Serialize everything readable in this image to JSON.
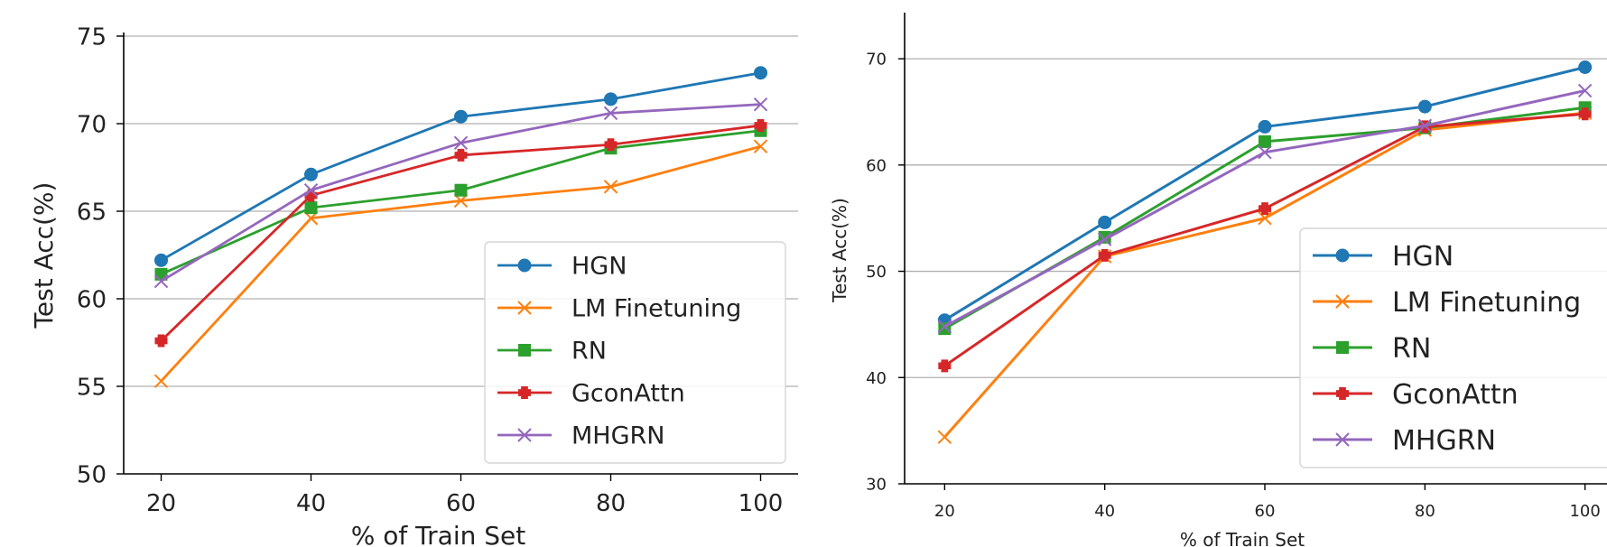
{
  "colors": {
    "HGN": "#1f77b4",
    "LM Finetuning": "#ff7f0e",
    "RN": "#2ca02c",
    "GconAttn": "#d62728",
    "MHGRN": "#9467bd",
    "grid": "#b0b0b0",
    "axis": "#000000"
  },
  "chart_data": [
    {
      "type": "line",
      "title": "",
      "xlabel": "% of Train Set",
      "ylabel": "Test Acc(%)",
      "x": [
        20,
        40,
        60,
        80,
        100
      ],
      "xticks": [
        "20",
        "40",
        "60",
        "80",
        "100"
      ],
      "yticks": [
        "50",
        "55",
        "60",
        "65",
        "70",
        "75"
      ],
      "ytick_values": [
        50,
        55,
        60,
        65,
        70,
        75
      ],
      "xlim": [
        15,
        105
      ],
      "ylim": [
        50,
        75
      ],
      "grid": "y",
      "legend_position": "lower right",
      "series": [
        {
          "name": "HGN",
          "marker": "circle",
          "values": [
            62.2,
            67.1,
            70.4,
            71.4,
            72.9
          ]
        },
        {
          "name": "LM Finetuning",
          "marker": "x",
          "values": [
            55.3,
            64.6,
            65.6,
            66.4,
            68.7
          ]
        },
        {
          "name": "RN",
          "marker": "square",
          "values": [
            61.4,
            65.2,
            66.2,
            68.6,
            69.6
          ]
        },
        {
          "name": "GconAttn",
          "marker": "plus",
          "values": [
            57.6,
            65.9,
            68.2,
            68.8,
            69.9
          ]
        },
        {
          "name": "MHGRN",
          "marker": "x",
          "values": [
            61.0,
            66.2,
            68.9,
            70.6,
            71.1
          ]
        }
      ]
    },
    {
      "type": "line",
      "title": "",
      "xlabel": "% of Train Set",
      "ylabel": "Test Acc(%)",
      "x": [
        20,
        40,
        60,
        80,
        100
      ],
      "xticks": [
        "20",
        "40",
        "60",
        "80",
        "100"
      ],
      "yticks": [
        "30",
        "40",
        "50",
        "60",
        "70"
      ],
      "ytick_values": [
        30,
        40,
        50,
        60,
        70
      ],
      "xlim": [
        15,
        105
      ],
      "ylim": [
        30,
        74
      ],
      "grid": "y",
      "legend_position": "lower right",
      "series": [
        {
          "name": "HGN",
          "marker": "circle",
          "values": [
            45.4,
            54.6,
            63.6,
            65.5,
            69.2
          ]
        },
        {
          "name": "LM Finetuning",
          "marker": "x",
          "values": [
            34.4,
            51.4,
            55.0,
            63.3,
            64.9
          ]
        },
        {
          "name": "RN",
          "marker": "square",
          "values": [
            44.6,
            53.2,
            62.2,
            63.5,
            65.4
          ]
        },
        {
          "name": "GconAttn",
          "marker": "plus",
          "values": [
            41.1,
            51.5,
            55.9,
            63.6,
            64.8
          ]
        },
        {
          "name": "MHGRN",
          "marker": "x",
          "values": [
            44.8,
            53.0,
            61.2,
            63.7,
            67.0
          ]
        }
      ]
    }
  ]
}
